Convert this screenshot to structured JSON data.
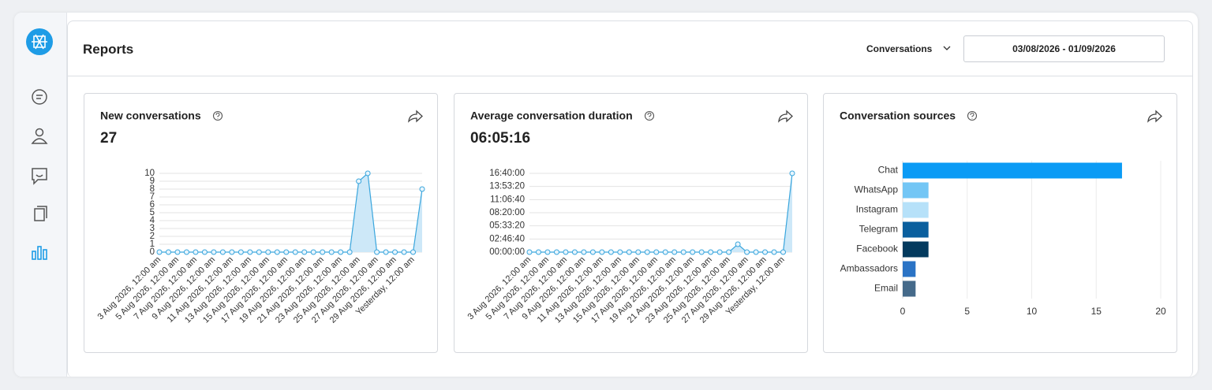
{
  "header": {
    "title": "Reports",
    "report_select": "Conversations",
    "date_range": "03/08/2026 - 01/09/2026"
  },
  "chart_data": [
    {
      "type": "line",
      "title": "New conversations",
      "summary": 27,
      "categories": [
        "3 Aug 2026, 12:00 am",
        null,
        "5 Aug 2026, 12:00 am",
        null,
        "7 Aug 2026, 12:00 am",
        null,
        "9 Aug 2026, 12:00 am",
        null,
        "11 Aug 2026, 12:00 am",
        null,
        "13 Aug 2026, 12:00 am",
        null,
        "15 Aug 2026, 12:00 am",
        null,
        "17 Aug 2026, 12:00 am",
        null,
        "19 Aug 2026, 12:00 am",
        null,
        "21 Aug 2026, 12:00 am",
        null,
        "23 Aug 2026, 12:00 am",
        null,
        "25 Aug 2026, 12:00 am",
        null,
        "27 Aug 2026, 12:00 am",
        null,
        "29 Aug 2026, 12:00 am",
        null,
        "Yesterday, 12:00 am",
        null
      ],
      "values": [
        0,
        0,
        0,
        0,
        0,
        0,
        0,
        0,
        0,
        0,
        0,
        0,
        0,
        0,
        0,
        0,
        0,
        0,
        0,
        0,
        0,
        0,
        9,
        10,
        0,
        0,
        0,
        0,
        0,
        8
      ],
      "color": "#3aa6dd",
      "ylim": [
        0,
        10
      ],
      "yticks": [
        0,
        1,
        2,
        3,
        4,
        5,
        6,
        7,
        8,
        9,
        10
      ],
      "grid": true
    },
    {
      "type": "line",
      "title": "Average conversation duration",
      "summary": "06:05:16",
      "categories": [
        "3 Aug 2026, 12:00 am",
        null,
        "5 Aug 2026, 12:00 am",
        null,
        "7 Aug 2026, 12:00 am",
        null,
        "9 Aug 2026, 12:00 am",
        null,
        "11 Aug 2026, 12:00 am",
        null,
        "13 Aug 2026, 12:00 am",
        null,
        "15 Aug 2026, 12:00 am",
        null,
        "17 Aug 2026, 12:00 am",
        null,
        "19 Aug 2026, 12:00 am",
        null,
        "21 Aug 2026, 12:00 am",
        null,
        "23 Aug 2026, 12:00 am",
        null,
        "25 Aug 2026, 12:00 am",
        null,
        "27 Aug 2026, 12:00 am",
        null,
        "29 Aug 2026, 12:00 am",
        null,
        "Yesterday, 12:00 am",
        null
      ],
      "values": [
        0,
        0,
        0,
        0,
        0,
        0,
        0,
        0,
        0,
        0,
        0,
        0,
        0,
        0,
        0,
        0,
        0,
        0,
        0,
        0,
        0,
        0,
        0,
        6000,
        0,
        0,
        0,
        0,
        0,
        60000
      ],
      "color": "#3aa6dd",
      "ylim": [
        0,
        60000
      ],
      "yticks": [
        {
          "value": 0,
          "label": "00:00:00"
        },
        {
          "value": 10000,
          "label": "02:46:40"
        },
        {
          "value": 20000,
          "label": "05:33:20"
        },
        {
          "value": 30000,
          "label": "08:20:00"
        },
        {
          "value": 40000,
          "label": "11:06:40"
        },
        {
          "value": 50000,
          "label": "13:53:20"
        },
        {
          "value": 60000,
          "label": "16:40:00"
        }
      ],
      "grid": true
    },
    {
      "type": "hbar",
      "title": "Conversation sources",
      "categories": [
        "Chat",
        "WhatsApp",
        "Instagram",
        "Telegram",
        "Facebook",
        "Ambassadors",
        "Email"
      ],
      "values": [
        17,
        2,
        2,
        2,
        2,
        1,
        1
      ],
      "colors": [
        "#0b9bf5",
        "#73c6f5",
        "#b6e1f9",
        "#0a5f9e",
        "#033a5e",
        "#2a73c5",
        "#456a8a"
      ],
      "xlim": [
        0,
        20
      ],
      "xticks": [
        0,
        5,
        10,
        15,
        20
      ],
      "grid": true
    }
  ]
}
